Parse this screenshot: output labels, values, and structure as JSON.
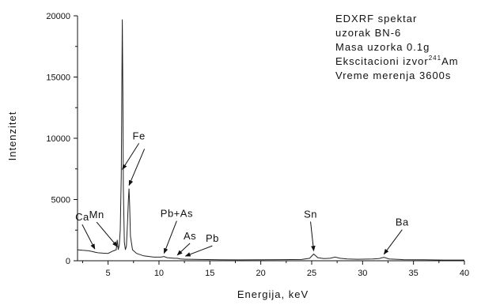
{
  "chart_data": {
    "type": "line",
    "xlabel": "Energija, keV",
    "ylabel": "Intenzitet",
    "xlim": [
      2,
      40
    ],
    "ylim": [
      0,
      20000
    ],
    "x_ticks": [
      5,
      10,
      15,
      20,
      25,
      30,
      35,
      40
    ],
    "x_tick_labels": [
      "5",
      "10",
      "15",
      "20",
      "25",
      "30",
      "35",
      "40"
    ],
    "y_ticks": [
      0,
      5000,
      10000,
      15000,
      20000
    ],
    "y_tick_labels": [
      "0",
      "5000",
      "10000",
      "15000",
      "20000"
    ],
    "grid": false,
    "info_box": {
      "line1": "EDXRF spektar",
      "line2": "uzorak BN-6",
      "line3": "Masa uzorka 0.1g",
      "line4_main": "Ekscitacioni izvor",
      "line4_sup": "241",
      "line4_end": "Am",
      "line5": "Vreme merenja 3600s"
    },
    "annotations": [
      {
        "label": "Ca",
        "x": 3.7,
        "y": 700
      },
      {
        "label": "Mn",
        "x": 5.9,
        "y": 900
      },
      {
        "label": "Fe",
        "x": 6.4,
        "y": 7200
      },
      {
        "label": "Fe",
        "x": 7.06,
        "y": 5900
      },
      {
        "label": "Pb+As",
        "x": 10.5,
        "y": 350
      },
      {
        "label": "As",
        "x": 11.8,
        "y": 200
      },
      {
        "label": "Pb",
        "x": 12.6,
        "y": 120
      },
      {
        "label": "Sn",
        "x": 25.2,
        "y": 550
      },
      {
        "label": "Ba",
        "x": 32.1,
        "y": 280
      }
    ],
    "series": [
      {
        "x": [
          2,
          2.5,
          3,
          3.3,
          3.7,
          4.0,
          4.5,
          5.0,
          5.5,
          5.8,
          5.9,
          6.0,
          6.1,
          6.2,
          6.3,
          6.35,
          6.4,
          6.45,
          6.5,
          6.6,
          6.7,
          6.8,
          6.9,
          7.0,
          7.06,
          7.12,
          7.2,
          7.4,
          7.8,
          8.5,
          9.5,
          10.2,
          10.5,
          10.8,
          11.5,
          11.8,
          12.1,
          12.6,
          13.0,
          14,
          16,
          18,
          20,
          22,
          24,
          24.8,
          25.2,
          25.6,
          26.2,
          26.8,
          27.3,
          27.8,
          28.5,
          29.5,
          31.0,
          31.6,
          32.1,
          32.6,
          34,
          36,
          38,
          40
        ],
        "y": [
          900,
          850,
          820,
          780,
          700,
          650,
          620,
          600,
          800,
          900,
          1700,
          900,
          1300,
          2500,
          7000,
          14000,
          19700,
          14000,
          6000,
          1500,
          900,
          1200,
          3000,
          5000,
          5900,
          4500,
          2000,
          900,
          600,
          400,
          300,
          300,
          350,
          250,
          200,
          200,
          150,
          120,
          120,
          100,
          80,
          70,
          80,
          90,
          100,
          200,
          550,
          250,
          180,
          200,
          300,
          200,
          150,
          120,
          150,
          180,
          280,
          150,
          90,
          80,
          60,
          60
        ]
      }
    ]
  }
}
